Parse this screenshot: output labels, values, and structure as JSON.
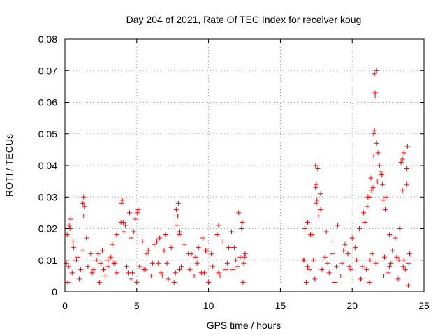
{
  "chart_data": {
    "type": "scatter",
    "title": "Day 204 of 2021, Rate Of TEC Index for receiver koug",
    "xlabel": "GPS time / hours",
    "ylabel": "ROTI / TECUs",
    "xlim": [
      0,
      25
    ],
    "ylim": [
      0,
      0.08
    ],
    "xticks": [
      "0",
      "5",
      "10",
      "15",
      "20",
      "25"
    ],
    "yticks": [
      "0",
      "0.01",
      "0.02",
      "0.03",
      "0.04",
      "0.05",
      "0.06",
      "0.07",
      "0.08"
    ],
    "grid": true,
    "marker": "+",
    "color": "#ff0000",
    "series": [
      {
        "name": "ROTI",
        "x": [
          0.1,
          0.3,
          0.4,
          0.6,
          0.9,
          1.2,
          1.3,
          1.5,
          1.8,
          2.2,
          2.6,
          3.0,
          3.3,
          3.6,
          3.9,
          4.0,
          4.2,
          4.5,
          4.8,
          5.1,
          5.4,
          5.8,
          6.2,
          6.6,
          7.0,
          7.4,
          7.8,
          7.9,
          8.3,
          8.8,
          9.3,
          9.8,
          10.2,
          10.6,
          11.0,
          11.4,
          11.8,
          12.1,
          12.3,
          12.5,
          16.6,
          16.9,
          17.2,
          17.5,
          17.6,
          17.8,
          18.2,
          18.6,
          19.0,
          19.5,
          20.0,
          20.5,
          20.8,
          21.1,
          21.3,
          21.5,
          21.6,
          21.7,
          21.8,
          22.0,
          22.1,
          22.3,
          22.6,
          23.0,
          23.3,
          23.5,
          23.6,
          23.8,
          24.0,
          0.5,
          2.0,
          3.0,
          4.4,
          5.5,
          6.8,
          8.0,
          9.5,
          11.2,
          12.0,
          17.0,
          18.4,
          19.8,
          21.0,
          22.5,
          23.7,
          1.0,
          2.8,
          4.6,
          6.0,
          7.2,
          9.0,
          10.8,
          17.4,
          19.2,
          20.6,
          22.2,
          23.2,
          0.2,
          2.4,
          5.0,
          7.6,
          10.0,
          12.4,
          16.8,
          18.8,
          21.2,
          23.9,
          21.55,
          21.6,
          21.5,
          21.55,
          21.45,
          21.7,
          21.9,
          22.05,
          23.4,
          23.5,
          23.85,
          23.8,
          17.45,
          17.5,
          17.55,
          17.45,
          17.65,
          16.7,
          17.1,
          17.8,
          20.9,
          21.05,
          21.2,
          21.35,
          21.75,
          22.15,
          22.35,
          0.15,
          0.35,
          0.55,
          1.25,
          1.3,
          1.35,
          3.95,
          4.05,
          4.1,
          4.6,
          4.9,
          5.05,
          7.75,
          7.85,
          7.95,
          8.0,
          6.4,
          9.6,
          10.7,
          11.6,
          12.35,
          12.55,
          12.2,
          2.3,
          3.2,
          5.7,
          6.9,
          8.6,
          9.9,
          11.5,
          18.6,
          19.4,
          20.2,
          21.4,
          22.8,
          23.1,
          23.6,
          0.7,
          3.5,
          6.5,
          9.1,
          11.9,
          16.65,
          18.1,
          19.7,
          22.7,
          23.95,
          0.8,
          1.6,
          2.5,
          3.4,
          4.3,
          5.2,
          6.1,
          7.1,
          8.1,
          9.2,
          10.3,
          11.3,
          12.45,
          17.3,
          18.3,
          19.3,
          20.3,
          21.25,
          22.25,
          23.25,
          0.25,
          1.1,
          1.9,
          2.7,
          3.6,
          4.7,
          5.6,
          6.7,
          7.7,
          8.7,
          9.7,
          10.7,
          11.7,
          16.9,
          17.9,
          18.9,
          19.9,
          20.7,
          21.65,
          22.6,
          23.55
        ],
        "y": [
          0.009,
          0.021,
          0.023,
          0.014,
          0.011,
          0.013,
          0.03,
          0.017,
          0.012,
          0.01,
          0.013,
          0.01,
          0.015,
          0.018,
          0.022,
          0.029,
          0.021,
          0.025,
          0.019,
          0.026,
          0.016,
          0.013,
          0.015,
          0.017,
          0.018,
          0.014,
          0.021,
          0.028,
          0.015,
          0.012,
          0.014,
          0.013,
          0.012,
          0.018,
          0.016,
          0.014,
          0.014,
          0.025,
          0.02,
          0.011,
          0.01,
          0.022,
          0.018,
          0.028,
          0.039,
          0.031,
          0.019,
          0.016,
          0.021,
          0.015,
          0.017,
          0.02,
          0.025,
          0.03,
          0.036,
          0.05,
          0.063,
          0.07,
          0.044,
          0.038,
          0.034,
          0.026,
          0.018,
          0.017,
          0.02,
          0.042,
          0.044,
          0.034,
          0.012,
          0.006,
          0.007,
          0.008,
          0.006,
          0.007,
          0.005,
          0.007,
          0.006,
          0.007,
          0.008,
          0.007,
          0.006,
          0.008,
          0.007,
          0.006,
          0.007,
          0.004,
          0.005,
          0.004,
          0.005,
          0.004,
          0.005,
          0.005,
          0.004,
          0.005,
          0.004,
          0.005,
          0.004,
          0.003,
          0.003,
          0.003,
          0.003,
          0.003,
          0.003,
          0.003,
          0.003,
          0.003,
          0.002,
          0.069,
          0.062,
          0.043,
          0.051,
          0.033,
          0.047,
          0.04,
          0.037,
          0.041,
          0.032,
          0.046,
          0.039,
          0.04,
          0.034,
          0.029,
          0.033,
          0.024,
          0.02,
          0.018,
          0.026,
          0.022,
          0.027,
          0.03,
          0.032,
          0.035,
          0.029,
          0.03,
          0.018,
          0.02,
          0.016,
          0.028,
          0.024,
          0.027,
          0.028,
          0.022,
          0.019,
          0.017,
          0.023,
          0.025,
          0.026,
          0.024,
          0.018,
          0.019,
          0.016,
          0.017,
          0.021,
          0.019,
          0.022,
          0.012,
          0.011,
          0.012,
          0.011,
          0.012,
          0.013,
          0.012,
          0.013,
          0.014,
          0.012,
          0.013,
          0.014,
          0.012,
          0.013,
          0.011,
          0.01,
          0.01,
          0.009,
          0.009,
          0.011,
          0.01,
          0.01,
          0.011,
          0.012,
          0.009,
          0.009,
          0.01,
          0.008,
          0.009,
          0.009,
          0.008,
          0.008,
          0.009,
          0.009,
          0.008,
          0.009,
          0.008,
          0.009,
          0.009,
          0.01,
          0.009,
          0.009,
          0.01,
          0.01,
          0.011,
          0.01,
          0.008,
          0.007,
          0.006,
          0.007,
          0.006,
          0.006,
          0.007,
          0.006,
          0.006,
          0.007,
          0.006,
          0.006,
          0.007,
          0.008,
          0.007,
          0.008,
          0.007,
          0.008,
          0.009,
          0.008,
          0.008
        ]
      }
    ]
  }
}
